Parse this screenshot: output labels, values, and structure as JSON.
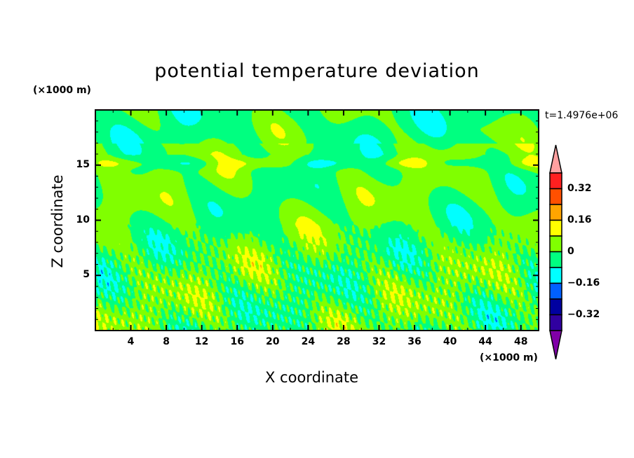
{
  "chart_data": {
    "type": "heatmap",
    "title": "potential temperature deviation",
    "xlabel": "X coordinate",
    "ylabel": "Z coordinate",
    "x_unit": "(×1000 m)",
    "y_unit": "(×1000 m)",
    "time_label": "t=1.4976e+06",
    "xlim": [
      0,
      50
    ],
    "ylim": [
      0,
      20
    ],
    "xticks": [
      4,
      8,
      12,
      16,
      20,
      24,
      28,
      32,
      36,
      40,
      44,
      48
    ],
    "yticks": [
      5,
      10,
      15
    ],
    "levels": [
      -0.4,
      -0.32,
      -0.24,
      -0.16,
      -0.08,
      0,
      0.08,
      0.16,
      0.24,
      0.32,
      0.4
    ],
    "colors": [
      "#8000a8",
      "#3000a0",
      "#0000a0",
      "#0060ff",
      "#00ffff",
      "#00ff80",
      "#80ff00",
      "#ffff00",
      "#ffa500",
      "#ff5000",
      "#ff2020",
      "#ffa0a0"
    ],
    "colorbar_labels": [
      "0.32",
      "0.16",
      "0",
      "-0.16",
      "-0.32"
    ],
    "colorbar_label_values": [
      0.32,
      0.16,
      0,
      -0.16,
      -0.32
    ]
  }
}
